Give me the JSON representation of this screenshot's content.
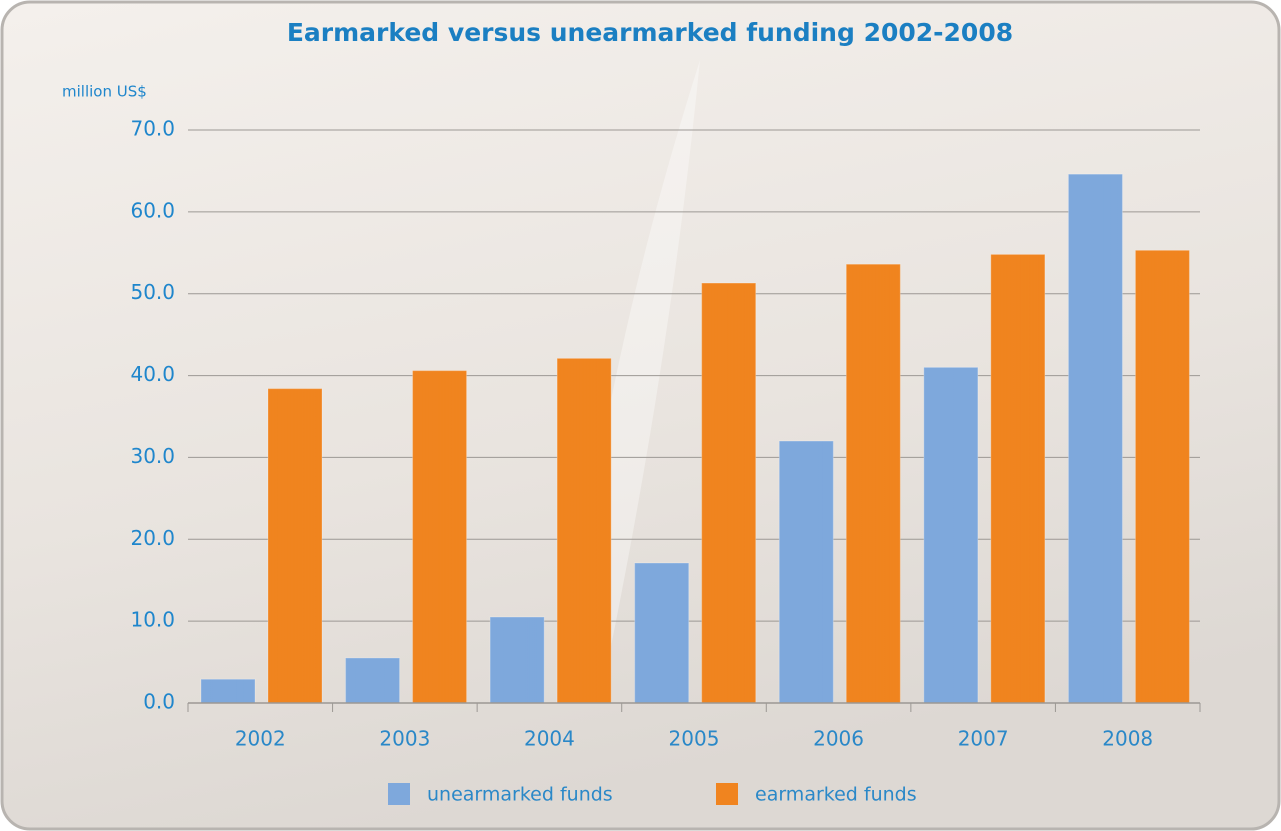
{
  "chart_data": {
    "type": "bar",
    "title": "Earmarked versus unearmarked funding 2002-2008",
    "y_label": "million US$",
    "categories": [
      "2002",
      "2003",
      "2004",
      "2005",
      "2006",
      "2007",
      "2008"
    ],
    "series": [
      {
        "name": "unearmarked funds",
        "color": "#7ea8dc",
        "values": [
          2.9,
          5.5,
          10.5,
          17.1,
          32.0,
          41.0,
          64.6
        ]
      },
      {
        "name": "earmarked funds",
        "color": "#f0841f",
        "values": [
          38.4,
          40.6,
          42.1,
          51.3,
          53.6,
          54.8,
          55.3
        ]
      }
    ],
    "ylim": [
      0,
      70
    ],
    "yticks": [
      {
        "value": 0,
        "label": "0.0"
      },
      {
        "value": 10,
        "label": "10.0"
      },
      {
        "value": 20,
        "label": "20.0"
      },
      {
        "value": 30,
        "label": "30.0"
      },
      {
        "value": 40,
        "label": "40.0"
      },
      {
        "value": 50,
        "label": "50.0"
      },
      {
        "value": 60,
        "label": "60.0"
      },
      {
        "value": 70,
        "label": "70.0"
      }
    ],
    "grid": true
  }
}
